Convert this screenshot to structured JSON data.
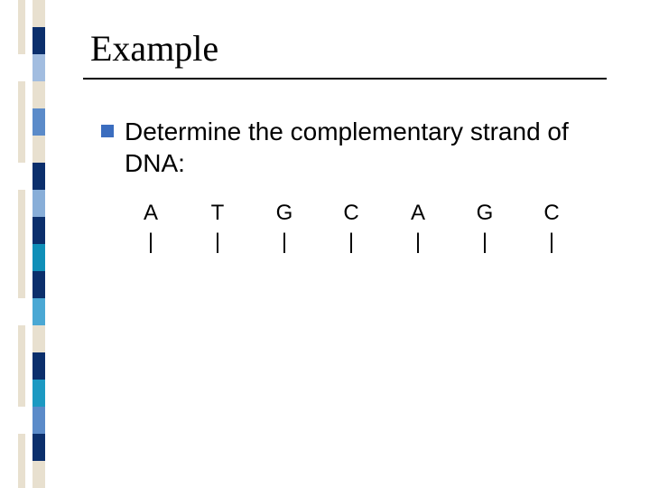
{
  "title": "Example",
  "bullet": {
    "text": "Determine the complementary strand of DNA:",
    "square_color": "#3b6dbf"
  },
  "sequence": {
    "bases": [
      "A",
      "T",
      "G",
      "C",
      "A",
      "G",
      "C"
    ],
    "bonds": [
      "|",
      "|",
      "|",
      "|",
      "|",
      "|",
      "|"
    ]
  },
  "sidebar": {
    "left_colors": [
      "#e8e0cf",
      "#e8e0cf",
      "#ffffff",
      "#e8e0cf",
      "#e8e0cf",
      "#e8e0cf",
      "#ffffff",
      "#e8e0cf",
      "#e8e0cf",
      "#e8e0cf",
      "#e8e0cf",
      "#ffffff",
      "#e8e0cf",
      "#e8e0cf",
      "#e8e0cf",
      "#ffffff",
      "#e8e0cf",
      "#e8e0cf"
    ],
    "right_colors": [
      "#e8e0cf",
      "#0b2f6c",
      "#a2bde0",
      "#e8e0cf",
      "#5b8bc9",
      "#e8e0cf",
      "#0b2f6c",
      "#88aed8",
      "#0b2f6c",
      "#0f8fb8",
      "#0b2f6c",
      "#4aa8d4",
      "#e8e0cf",
      "#0b2f6c",
      "#1c99c2",
      "#5b8bc9",
      "#0b2f6c",
      "#e8e0cf"
    ]
  },
  "colors": {
    "text": "#000000",
    "background": "#ffffff",
    "underline": "#000000"
  }
}
